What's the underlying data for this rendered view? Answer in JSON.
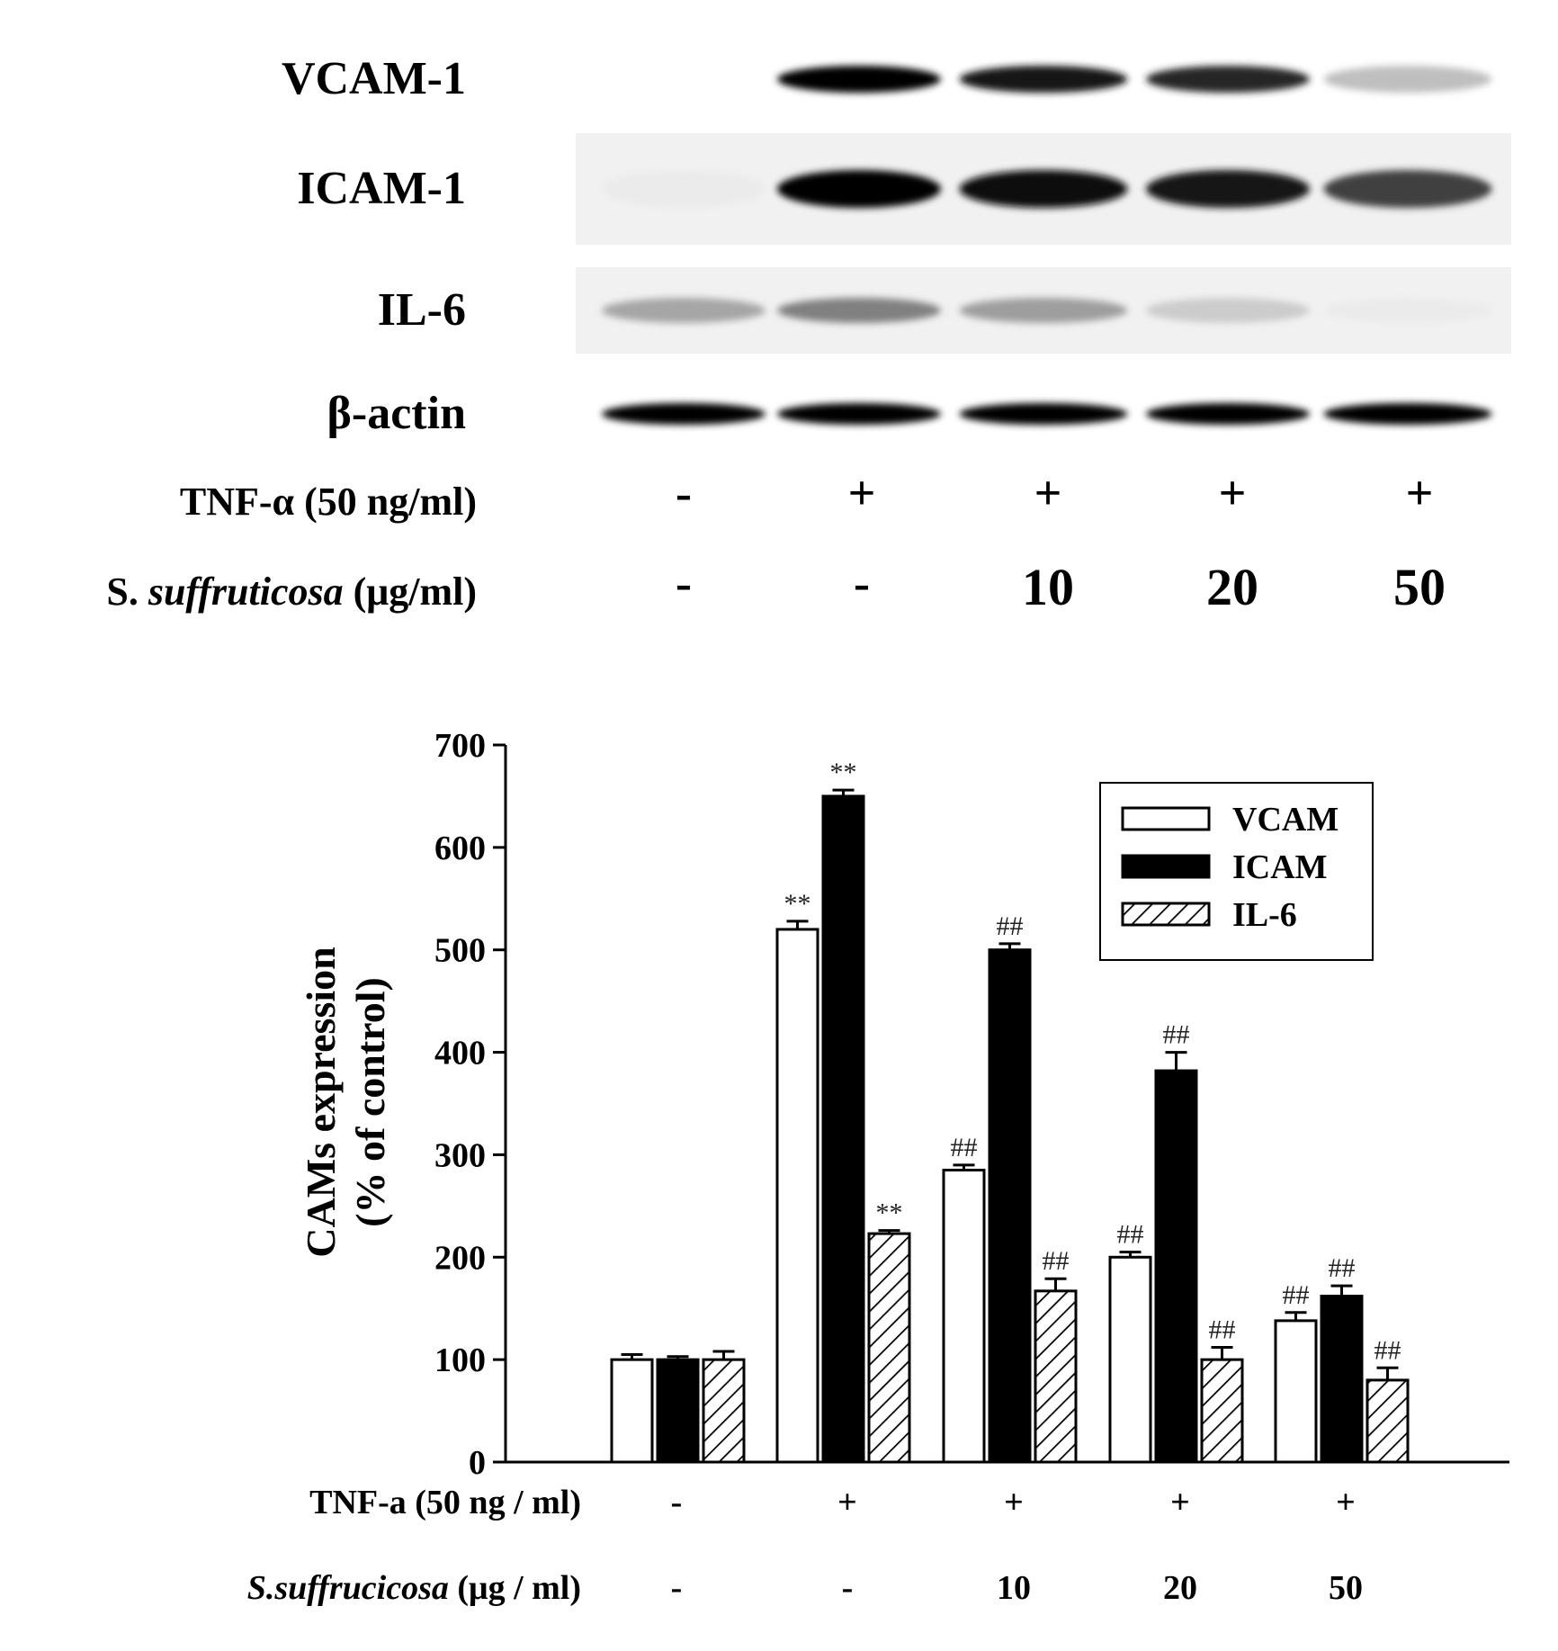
{
  "blot": {
    "rows": [
      {
        "label": "VCAM-1",
        "intensity": [
          0.0,
          1.0,
          0.92,
          0.85,
          0.25
        ]
      },
      {
        "label": "ICAM-1",
        "intensity": [
          0.08,
          1.0,
          0.97,
          0.92,
          0.75
        ]
      },
      {
        "label": "IL-6",
        "intensity": [
          0.35,
          0.5,
          0.38,
          0.2,
          0.08
        ]
      },
      {
        "label": "β-actin",
        "intensity": [
          1.0,
          1.0,
          1.0,
          1.0,
          1.0
        ]
      }
    ],
    "conditions": [
      {
        "label": "TNF-α (50 ng/ml)",
        "values": [
          "-",
          "+",
          "+",
          "+",
          "+"
        ]
      },
      {
        "label_prefix": "S. ",
        "label_italic": "suffruticosa",
        "label_suffix": " (μg/ml)",
        "values": [
          "-",
          "-",
          "10",
          "20",
          "50"
        ]
      }
    ]
  },
  "chart_data": {
    "type": "bar",
    "ylabel_line1": "CAMs expression",
    "ylabel_line2": "(% of control)",
    "ylim": [
      0,
      700
    ],
    "yticks": [
      0,
      100,
      200,
      300,
      400,
      500,
      600,
      700
    ],
    "groups": 5,
    "series": [
      {
        "name": "VCAM",
        "fill": "white",
        "values": [
          100,
          520,
          285,
          200,
          138
        ],
        "errors": [
          5,
          8,
          5,
          5,
          8
        ],
        "marks": [
          "",
          "**",
          "##",
          "##",
          "##"
        ]
      },
      {
        "name": "ICAM",
        "fill": "black",
        "values": [
          100,
          650,
          500,
          382,
          162
        ],
        "errors": [
          3,
          6,
          6,
          18,
          10
        ],
        "marks": [
          "",
          "**",
          "##",
          "##",
          "##"
        ]
      },
      {
        "name": "IL-6",
        "fill": "hatch",
        "values": [
          100,
          223,
          167,
          100,
          80
        ],
        "errors": [
          8,
          3,
          12,
          12,
          12
        ],
        "marks": [
          "",
          "**",
          "##",
          "##",
          "##"
        ]
      }
    ],
    "conditions": [
      {
        "label": "TNF-a (50 ng / ml)",
        "values": [
          "-",
          "+",
          "+",
          "+",
          "+"
        ]
      },
      {
        "label_italic": "S.suffrucicosa",
        "label_suffix": " (μg / ml)",
        "values": [
          "-",
          "-",
          "10",
          "20",
          "50"
        ]
      }
    ],
    "legend_position": "top-right"
  }
}
